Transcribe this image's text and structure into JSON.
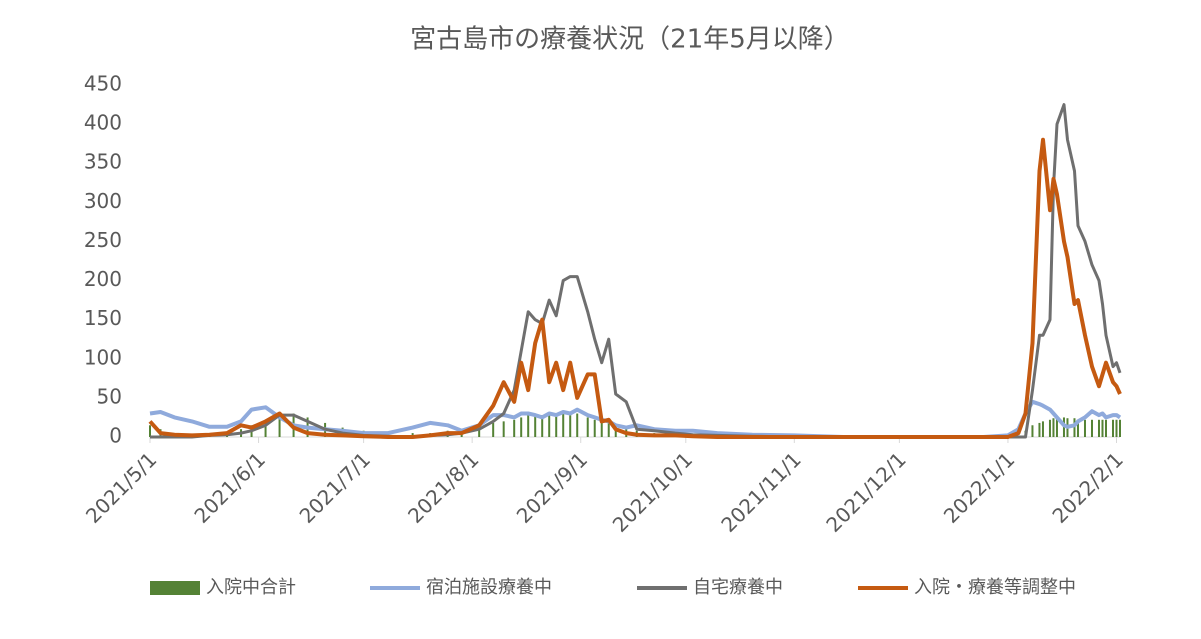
{
  "chart_data": {
    "type": "combo",
    "title": "宮古島市の療養状況（21年5月以降）",
    "x": [
      "2021/5/1",
      "2021/5/4",
      "2021/5/8",
      "2021/5/13",
      "2021/5/18",
      "2021/5/23",
      "2021/5/27",
      "2021/5/30",
      "2021/6/3",
      "2021/6/7",
      "2021/6/11",
      "2021/6/15",
      "2021/6/20",
      "2021/6/25",
      "2021/7/1",
      "2021/7/8",
      "2021/7/15",
      "2021/7/20",
      "2021/7/25",
      "2021/7/29",
      "2021/8/3",
      "2021/8/7",
      "2021/8/10",
      "2021/8/13",
      "2021/8/15",
      "2021/8/17",
      "2021/8/19",
      "2021/8/21",
      "2021/8/23",
      "2021/8/25",
      "2021/8/27",
      "2021/8/29",
      "2021/8/31",
      "2021/9/3",
      "2021/9/5",
      "2021/9/7",
      "2021/9/9",
      "2021/9/11",
      "2021/9/14",
      "2021/9/17",
      "2021/9/22",
      "2021/9/28",
      "2021/10/3",
      "2021/10/10",
      "2021/10/20",
      "2021/11/1",
      "2021/11/15",
      "2021/12/1",
      "2021/12/15",
      "2021/12/25",
      "2022/1/1",
      "2022/1/4",
      "2022/1/6",
      "2022/1/8",
      "2022/1/10",
      "2022/1/11",
      "2022/1/13",
      "2022/1/14",
      "2022/1/15",
      "2022/1/17",
      "2022/1/18",
      "2022/1/20",
      "2022/1/21",
      "2022/1/23",
      "2022/1/25",
      "2022/1/27",
      "2022/1/28",
      "2022/1/29",
      "2022/1/31",
      "2022/2/1",
      "2022/2/2"
    ],
    "series": [
      {
        "name": "入院中合計",
        "type": "bar",
        "color": "#548235",
        "values": [
          15,
          10,
          5,
          3,
          3,
          5,
          10,
          15,
          22,
          28,
          30,
          25,
          18,
          12,
          8,
          5,
          5,
          5,
          8,
          10,
          12,
          18,
          20,
          22,
          25,
          28,
          28,
          28,
          28,
          26,
          30,
          28,
          30,
          25,
          22,
          20,
          18,
          15,
          10,
          8,
          5,
          3,
          2,
          1,
          1,
          0,
          0,
          0,
          0,
          0,
          0,
          2,
          8,
          15,
          18,
          20,
          22,
          24,
          25,
          25,
          24,
          24,
          22,
          22,
          22,
          22,
          22,
          22,
          22,
          22,
          22
        ]
      },
      {
        "name": "宿泊施設療養中",
        "type": "line",
        "color": "#8faadc",
        "values": [
          30,
          32,
          25,
          20,
          13,
          13,
          20,
          35,
          38,
          25,
          15,
          12,
          10,
          8,
          5,
          5,
          12,
          18,
          15,
          8,
          15,
          28,
          28,
          25,
          30,
          30,
          28,
          25,
          30,
          28,
          32,
          30,
          35,
          28,
          25,
          22,
          20,
          15,
          12,
          15,
          10,
          8,
          8,
          5,
          3,
          2,
          0,
          0,
          0,
          0,
          2,
          10,
          30,
          45,
          42,
          40,
          35,
          30,
          25,
          15,
          13,
          15,
          20,
          25,
          33,
          28,
          30,
          25,
          28,
          28,
          25
        ]
      },
      {
        "name": "自宅療養中",
        "type": "line",
        "color": "#6f6f6f",
        "values": [
          0,
          0,
          0,
          0,
          2,
          3,
          5,
          8,
          15,
          28,
          28,
          20,
          10,
          5,
          2,
          1,
          0,
          2,
          3,
          5,
          10,
          20,
          30,
          60,
          110,
          160,
          150,
          145,
          175,
          155,
          200,
          205,
          205,
          160,
          125,
          95,
          125,
          55,
          45,
          10,
          8,
          5,
          3,
          2,
          1,
          0,
          0,
          0,
          0,
          0,
          0,
          0,
          0,
          60,
          130,
          130,
          150,
          320,
          400,
          425,
          380,
          340,
          270,
          250,
          220,
          200,
          170,
          130,
          90,
          95,
          82
        ]
      },
      {
        "name": "入院・療養等調整中",
        "type": "line",
        "color": "#c55a11",
        "values": [
          20,
          5,
          3,
          2,
          3,
          5,
          15,
          12,
          20,
          30,
          12,
          5,
          3,
          2,
          1,
          0,
          0,
          2,
          5,
          5,
          15,
          40,
          70,
          45,
          95,
          60,
          120,
          150,
          70,
          95,
          60,
          95,
          50,
          80,
          80,
          20,
          22,
          10,
          5,
          3,
          2,
          2,
          1,
          0,
          0,
          0,
          0,
          0,
          0,
          0,
          0,
          5,
          30,
          120,
          340,
          380,
          290,
          330,
          310,
          250,
          230,
          170,
          175,
          130,
          90,
          65,
          80,
          95,
          70,
          65,
          55
        ]
      }
    ],
    "xlim": [
      "2021/5/1",
      "2022/2/2"
    ],
    "xticks": [
      "2021/5/1",
      "2021/6/1",
      "2021/7/1",
      "2021/8/1",
      "2021/9/1",
      "2021/10/1",
      "2021/11/1",
      "2021/12/1",
      "2022/1/1",
      "2022/2/1"
    ],
    "ylim": [
      0,
      450
    ],
    "yticks": [
      0,
      50,
      100,
      150,
      200,
      250,
      300,
      350,
      400,
      450
    ],
    "legend": "bottom"
  }
}
